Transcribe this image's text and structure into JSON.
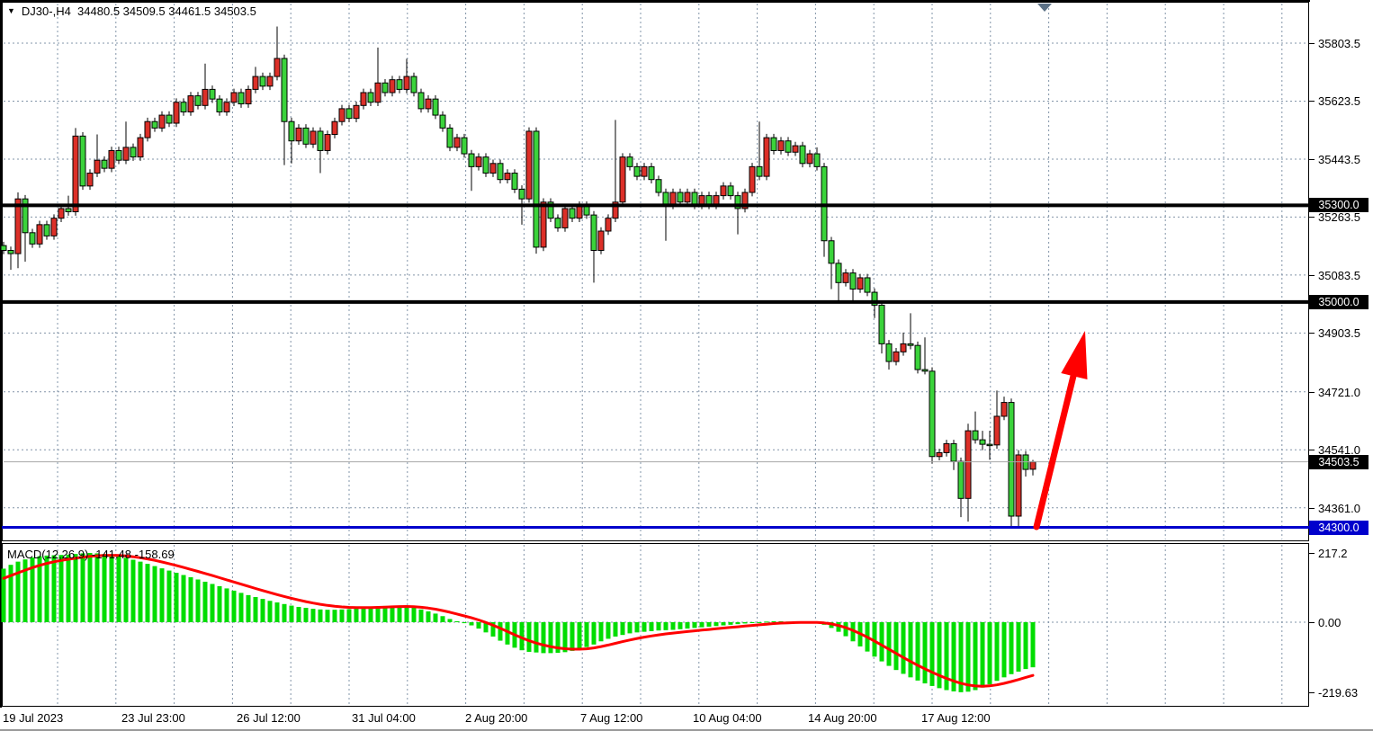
{
  "window": {
    "app": "trading-terminal-chart",
    "title_text": "DJ30-,H4  34480.5 34509.5 34461.5 34503.5"
  },
  "chart_data": {
    "type": "candlestick",
    "symbol": "DJ30-",
    "timeframe": "H4",
    "title_text": "DJ30-,H4  34480.5 34509.5 34461.5 34503.5",
    "ohlc_display": {
      "open": 34480.5,
      "high": 34509.5,
      "low": 34461.5,
      "close": 34503.5
    },
    "current_price": 34503.5,
    "current_price_label": "34503.5",
    "y_axis_ticks": [
      "35803.5",
      "35623.5",
      "35443.5",
      "35263.5",
      "35083.5",
      "34903.5",
      "34721.0",
      "34541.0",
      "34361.0"
    ],
    "y_axis_tick_values": [
      35803.5,
      35623.5,
      35443.5,
      35263.5,
      35083.5,
      34903.5,
      34721.0,
      34541.0,
      34361.0
    ],
    "x_axis_labels": [
      "19 Jul 2023",
      "23 Jul 23:00",
      "26 Jul 12:00",
      "31 Jul 04:00",
      "2 Aug 20:00",
      "7 Aug 12:00",
      "10 Aug 04:00",
      "14 Aug 20:00",
      "17 Aug 12:00"
    ],
    "price_levels": [
      {
        "value": 35300.0,
        "label": "35300.0",
        "color": "#000000",
        "thickness": 4
      },
      {
        "value": 35000.0,
        "label": "35000.0",
        "color": "#000000",
        "thickness": 4
      },
      {
        "value": 34300.0,
        "label": "34300.0",
        "color": "#0000cc",
        "thickness": 3
      }
    ],
    "annotations": [
      {
        "type": "arrow-up",
        "color": "#ff0000",
        "description": "large red up arrow from the 34300.0 support line pointing up toward 35000"
      },
      {
        "type": "chart-shift-marker",
        "color": "#5c7186"
      }
    ],
    "candles": [
      [
        35175,
        35187,
        35148,
        35160
      ],
      [
        35160,
        35172,
        35100,
        35150
      ],
      [
        35150,
        35340,
        35105,
        35320
      ],
      [
        35320,
        35332,
        35125,
        35215
      ],
      [
        35215,
        35227,
        35168,
        35180
      ],
      [
        35180,
        35252,
        35168,
        35240
      ],
      [
        35240,
        35252,
        35193,
        35205
      ],
      [
        35205,
        35272,
        35193,
        35260
      ],
      [
        35260,
        35302,
        35248,
        35290
      ],
      [
        35290,
        35330,
        35268,
        35280
      ],
      [
        35280,
        35540,
        35268,
        35515
      ],
      [
        35515,
        35527,
        35348,
        35360
      ],
      [
        35360,
        35412,
        35348,
        35400
      ],
      [
        35400,
        35520,
        35388,
        35440
      ],
      [
        35440,
        35452,
        35403,
        35415
      ],
      [
        35415,
        35482,
        35403,
        35470
      ],
      [
        35470,
        35482,
        35428,
        35440
      ],
      [
        35440,
        35560,
        35428,
        35480
      ],
      [
        35480,
        35492,
        35438,
        35450
      ],
      [
        35450,
        35522,
        35438,
        35510
      ],
      [
        35510,
        35572,
        35498,
        35560
      ],
      [
        35560,
        35572,
        35528,
        35540
      ],
      [
        35540,
        35592,
        35528,
        35580
      ],
      [
        35580,
        35592,
        35543,
        35555
      ],
      [
        35555,
        35632,
        35543,
        35620
      ],
      [
        35620,
        35632,
        35578,
        35590
      ],
      [
        35590,
        35652,
        35578,
        35640
      ],
      [
        35640,
        35652,
        35598,
        35610
      ],
      [
        35610,
        35740,
        35598,
        35660
      ],
      [
        35660,
        35672,
        35618,
        35630
      ],
      [
        35630,
        35642,
        35578,
        35590
      ],
      [
        35590,
        35632,
        35578,
        35620
      ],
      [
        35620,
        35662,
        35608,
        35650
      ],
      [
        35650,
        35662,
        35603,
        35615
      ],
      [
        35615,
        35672,
        35603,
        35660
      ],
      [
        35660,
        35730,
        35648,
        35700
      ],
      [
        35700,
        35712,
        35658,
        35670
      ],
      [
        35670,
        35712,
        35658,
        35700
      ],
      [
        35700,
        35855,
        35688,
        35756
      ],
      [
        35756,
        35768,
        35425,
        35560
      ],
      [
        35560,
        35572,
        35430,
        35500
      ],
      [
        35500,
        35552,
        35488,
        35540
      ],
      [
        35540,
        35552,
        35478,
        35490
      ],
      [
        35490,
        35542,
        35478,
        35530
      ],
      [
        35530,
        35542,
        35400,
        35470
      ],
      [
        35470,
        35532,
        35458,
        35520
      ],
      [
        35520,
        35572,
        35508,
        35560
      ],
      [
        35560,
        35612,
        35548,
        35600
      ],
      [
        35600,
        35612,
        35558,
        35570
      ],
      [
        35570,
        35622,
        35558,
        35610
      ],
      [
        35610,
        35662,
        35598,
        35650
      ],
      [
        35650,
        35662,
        35608,
        35620
      ],
      [
        35620,
        35790,
        35608,
        35680
      ],
      [
        35680,
        35692,
        35638,
        35650
      ],
      [
        35650,
        35702,
        35638,
        35690
      ],
      [
        35690,
        35702,
        35648,
        35660
      ],
      [
        35660,
        35755,
        35648,
        35700
      ],
      [
        35700,
        35712,
        35638,
        35650
      ],
      [
        35650,
        35662,
        35588,
        35600
      ],
      [
        35600,
        35642,
        35588,
        35630
      ],
      [
        35630,
        35642,
        35568,
        35580
      ],
      [
        35580,
        35592,
        35528,
        35540
      ],
      [
        35540,
        35552,
        35468,
        35480
      ],
      [
        35480,
        35522,
        35468,
        35510
      ],
      [
        35510,
        35522,
        35448,
        35460
      ],
      [
        35460,
        35472,
        35345,
        35420
      ],
      [
        35420,
        35462,
        35408,
        35450
      ],
      [
        35450,
        35462,
        35388,
        35400
      ],
      [
        35400,
        35442,
        35388,
        35430
      ],
      [
        35430,
        35442,
        35368,
        35380
      ],
      [
        35380,
        35412,
        35368,
        35400
      ],
      [
        35400,
        35412,
        35338,
        35350
      ],
      [
        35350,
        35362,
        35240,
        35320
      ],
      [
        35320,
        35542,
        35308,
        35530
      ],
      [
        35530,
        35542,
        35150,
        35170
      ],
      [
        35170,
        35322,
        35158,
        35310
      ],
      [
        35310,
        35322,
        35248,
        35260
      ],
      [
        35260,
        35272,
        35218,
        35230
      ],
      [
        35230,
        35302,
        35218,
        35290
      ],
      [
        35290,
        35302,
        35248,
        35260
      ],
      [
        35260,
        35312,
        35248,
        35300
      ],
      [
        35300,
        35312,
        35258,
        35270
      ],
      [
        35270,
        35282,
        35060,
        35160
      ],
      [
        35160,
        35232,
        35148,
        35220
      ],
      [
        35220,
        35272,
        35208,
        35260
      ],
      [
        35260,
        35565,
        35248,
        35310
      ],
      [
        35310,
        35462,
        35298,
        35450
      ],
      [
        35450,
        35462,
        35408,
        35420
      ],
      [
        35420,
        35432,
        35378,
        35390
      ],
      [
        35390,
        35432,
        35378,
        35420
      ],
      [
        35420,
        35432,
        35368,
        35380
      ],
      [
        35380,
        35392,
        35328,
        35340
      ],
      [
        35340,
        35352,
        35190,
        35300
      ],
      [
        35300,
        35352,
        35288,
        35340
      ],
      [
        35340,
        35352,
        35298,
        35310
      ],
      [
        35310,
        35352,
        35298,
        35340
      ],
      [
        35340,
        35352,
        35288,
        35300
      ],
      [
        35300,
        35342,
        35288,
        35330
      ],
      [
        35330,
        35342,
        35288,
        35300
      ],
      [
        35300,
        35342,
        35288,
        35330
      ],
      [
        35330,
        35372,
        35318,
        35360
      ],
      [
        35360,
        35372,
        35318,
        35330
      ],
      [
        35330,
        35342,
        35210,
        35290
      ],
      [
        35290,
        35352,
        35278,
        35340
      ],
      [
        35340,
        35432,
        35328,
        35420
      ],
      [
        35420,
        35560,
        35378,
        35390
      ],
      [
        35390,
        35522,
        35378,
        35510
      ],
      [
        35510,
        35522,
        35458,
        35470
      ],
      [
        35470,
        35512,
        35458,
        35500
      ],
      [
        35500,
        35512,
        35453,
        35465
      ],
      [
        35465,
        35497,
        35453,
        35485
      ],
      [
        35485,
        35497,
        35418,
        35430
      ],
      [
        35430,
        35472,
        35418,
        35460
      ],
      [
        35460,
        35480,
        35408,
        35420
      ],
      [
        35420,
        35432,
        35140,
        35190
      ],
      [
        35190,
        35202,
        35040,
        35120
      ],
      [
        35120,
        35132,
        35005,
        35060
      ],
      [
        35060,
        35102,
        35048,
        35090
      ],
      [
        35090,
        35102,
        35005,
        35040
      ],
      [
        35040,
        35087,
        35028,
        35075
      ],
      [
        35075,
        35087,
        35018,
        35030
      ],
      [
        35030,
        35042,
        34950,
        34990
      ],
      [
        34990,
        35002,
        34840,
        34870
      ],
      [
        34870,
        34882,
        34790,
        34815
      ],
      [
        34815,
        34857,
        34803,
        34845
      ],
      [
        34845,
        34905,
        34833,
        34870
      ],
      [
        34870,
        34965,
        34853,
        34865
      ],
      [
        34865,
        34877,
        34778,
        34790
      ],
      [
        34790,
        34890,
        34775,
        34785
      ],
      [
        34785,
        34797,
        34498,
        34520
      ],
      [
        34520,
        34544,
        34508,
        34532
      ],
      [
        34532,
        34572,
        34520,
        34560
      ],
      [
        34560,
        34572,
        34478,
        34505
      ],
      [
        34505,
        34517,
        34332,
        34390
      ],
      [
        34390,
        34622,
        34318,
        34600
      ],
      [
        34600,
        34660,
        34560,
        34572
      ],
      [
        34572,
        34600,
        34540,
        34558
      ],
      [
        34558,
        34600,
        34510,
        34556
      ],
      [
        34556,
        34725,
        34544,
        34645
      ],
      [
        34645,
        34706,
        34633,
        34688
      ],
      [
        34688,
        34700,
        34301,
        34335
      ],
      [
        34335,
        34540,
        34302,
        34525
      ],
      [
        34525,
        34537,
        34458,
        34480
      ],
      [
        34480.5,
        34509.5,
        34461.5,
        34503.5
      ]
    ],
    "macd": {
      "label": "MACD(12,26,9) -141.48 -158.69",
      "params": "12,26,9",
      "main_value": -141.48,
      "signal_value": -158.69,
      "y_ticks": [
        "217.2",
        "0.00",
        "-219.63"
      ],
      "y_tick_values": [
        217.2,
        0,
        -219.63
      ],
      "histogram": [
        168,
        180,
        190,
        197,
        203,
        207,
        209,
        210,
        211,
        212,
        214,
        216,
        217.2,
        216,
        214,
        211,
        207,
        202,
        196,
        190,
        183,
        176,
        169,
        162,
        155,
        148,
        141,
        134,
        127,
        120,
        113,
        106,
        99,
        92,
        85,
        79,
        73,
        67,
        62,
        57,
        52,
        48,
        45,
        42,
        40,
        39,
        39,
        40,
        41,
        43,
        45,
        47,
        49,
        51,
        52,
        52,
        50,
        46,
        40,
        34,
        27,
        19,
        10,
        3,
        -3,
        -10,
        -20,
        -32,
        -45,
        -58,
        -70,
        -80,
        -88,
        -93,
        -95,
        -97,
        -97,
        -96,
        -94,
        -90,
        -85,
        -78,
        -70,
        -60,
        -52,
        -45,
        -40,
        -35,
        -32,
        -30,
        -28,
        -26,
        -25,
        -24,
        -22,
        -20,
        -18,
        -16,
        -14,
        -12,
        -10,
        -8,
        -6,
        -4,
        -2,
        0,
        2,
        3,
        3,
        2,
        2,
        1,
        0,
        -2,
        -8,
        -18,
        -30,
        -44,
        -60,
        -76,
        -92,
        -108,
        -123,
        -137,
        -150,
        -162,
        -173,
        -183,
        -192,
        -200,
        -207,
        -213,
        -217,
        -219.63,
        -218,
        -213,
        -205,
        -195,
        -184,
        -173,
        -163,
        -155,
        -147,
        -141.48
      ]
    },
    "colors": {
      "bull_candle": "#dc2f28",
      "bear_candle": "#3bd33b",
      "candle_outline": "#000000",
      "macd_histogram": "#00dd00",
      "macd_signal": "#ff0000",
      "grid": "#8294a8",
      "level_black": "#000000",
      "level_blue": "#0000cc",
      "current_price_line": "#a8a8a8",
      "arrow": "#ff0000",
      "shift_marker": "#5c7186",
      "badge_black_bg": "#000000",
      "badge_blue_bg": "#0000cc"
    }
  }
}
